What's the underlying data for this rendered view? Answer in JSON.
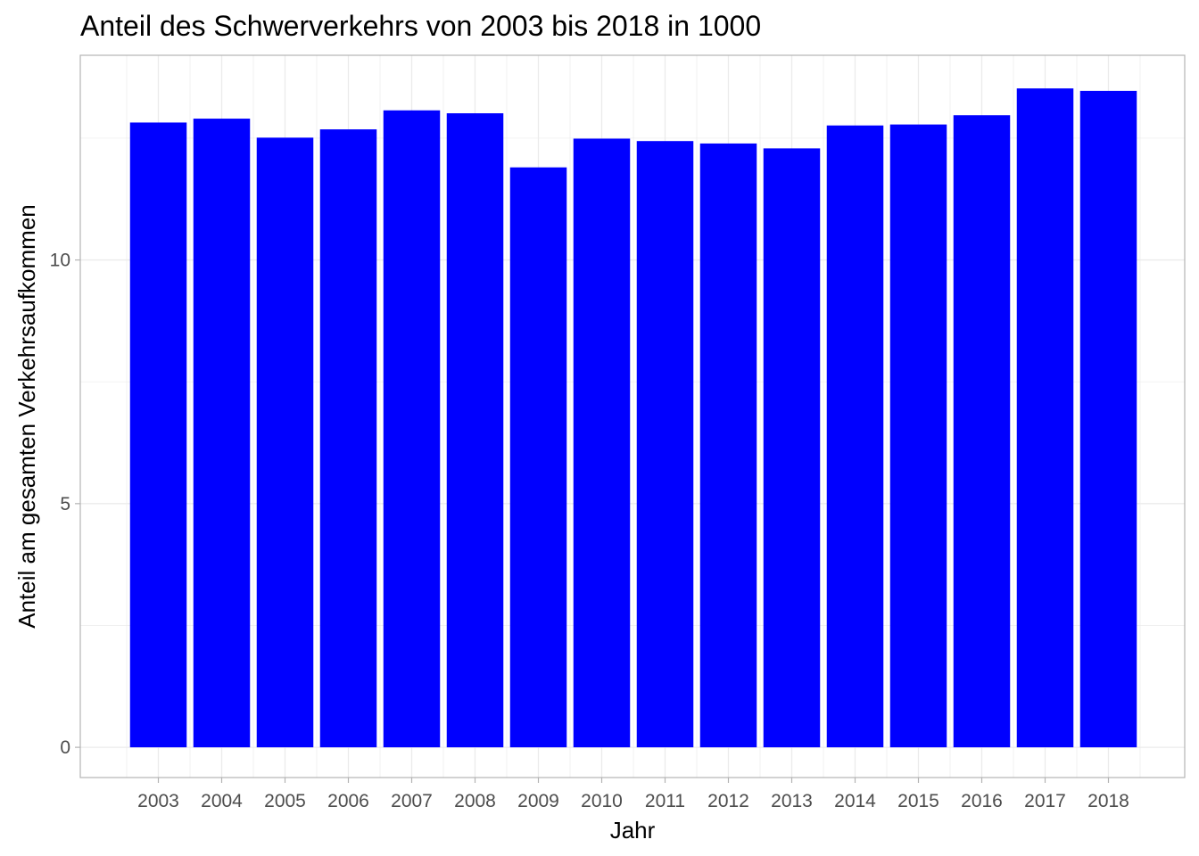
{
  "chart_data": {
    "type": "bar",
    "title": "Anteil des Schwerverkehrs von 2003 bis 2018 in 1000",
    "xlabel": "Jahr",
    "ylabel": "Anteil am gesamten Verkehrsaufkommen",
    "categories": [
      "2003",
      "2004",
      "2005",
      "2006",
      "2007",
      "2008",
      "2009",
      "2010",
      "2011",
      "2012",
      "2013",
      "2014",
      "2015",
      "2016",
      "2017",
      "2018"
    ],
    "values": [
      12.82,
      12.9,
      12.51,
      12.68,
      13.07,
      13.01,
      11.9,
      12.49,
      12.44,
      12.39,
      12.29,
      12.76,
      12.78,
      12.97,
      13.52,
      13.47
    ],
    "yticks": [
      0,
      5,
      10
    ],
    "yticks_text": [
      "0",
      "5",
      "10"
    ],
    "ylim": [
      -0.62,
      14.2
    ],
    "grid": true,
    "bar_color": "#0000ff",
    "panel_border_color": "#b3b3b3",
    "grid_color": "#ebebeb"
  }
}
